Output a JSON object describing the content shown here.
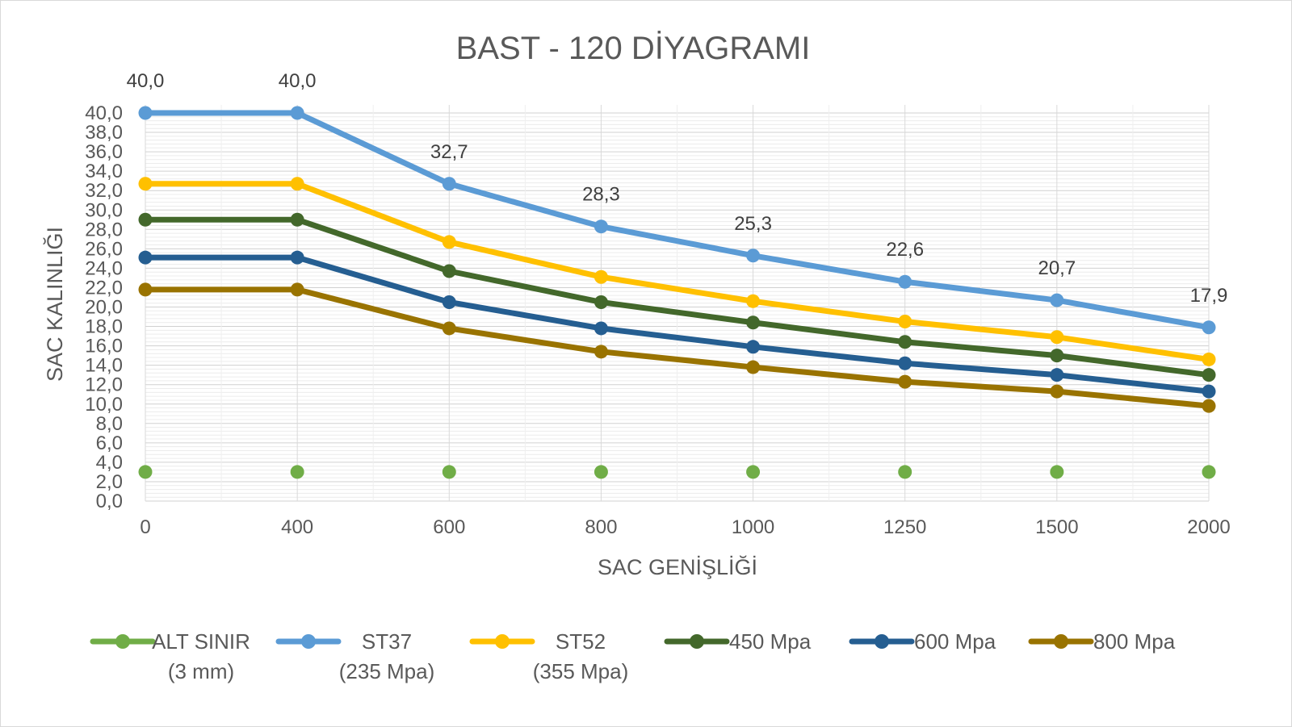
{
  "chart_data": {
    "type": "line",
    "title": "BAST - 120 DİYAGRAMI",
    "xlabel": "SAC GENİŞLİĞİ",
    "ylabel": "SAC KALINLIĞI",
    "categories": [
      "0",
      "400",
      "600",
      "800",
      "1000",
      "1250",
      "1500",
      "2000"
    ],
    "ylim": [
      0,
      40
    ],
    "y_ticks": [
      "0,0",
      "2,0",
      "4,0",
      "6,0",
      "8,0",
      "10,0",
      "12,0",
      "14,0",
      "16,0",
      "18,0",
      "20,0",
      "22,0",
      "24,0",
      "26,0",
      "28,0",
      "30,0",
      "32,0",
      "34,0",
      "36,0",
      "38,0",
      "40,0"
    ],
    "grid": true,
    "legend_position": "bottom",
    "series": [
      {
        "name_line1": "ALT SINIR",
        "name_line2": "(3 mm)",
        "color": "#70ad47",
        "values": [
          3.0,
          3.0,
          3.0,
          3.0,
          3.0,
          3.0,
          3.0,
          3.0
        ],
        "shadow": true
      },
      {
        "name_line1": "ST37",
        "name_line2": "(235 Mpa)",
        "color": "#5b9bd5",
        "values": [
          40.0,
          40.0,
          32.7,
          28.3,
          25.3,
          22.6,
          20.7,
          17.9
        ],
        "data_labels": [
          "40,0",
          "40,0",
          "32,7",
          "28,3",
          "25,3",
          "22,6",
          "20,7",
          "17,9"
        ]
      },
      {
        "name_line1": "ST52",
        "name_line2": "(355 Mpa)",
        "color": "#ffc000",
        "values": [
          32.7,
          32.7,
          26.7,
          23.1,
          20.6,
          18.5,
          16.9,
          14.6
        ]
      },
      {
        "name_line1": "450  Mpa",
        "name_line2": "",
        "color": "#43682b",
        "values": [
          29.0,
          29.0,
          23.7,
          20.5,
          18.4,
          16.4,
          15.0,
          13.0
        ]
      },
      {
        "name_line1": "600 Mpa",
        "name_line2": "",
        "color": "#255e91",
        "values": [
          25.1,
          25.1,
          20.5,
          17.8,
          15.9,
          14.2,
          13.0,
          11.3
        ]
      },
      {
        "name_line1": "800 Mpa",
        "name_line2": "",
        "color": "#997300",
        "values": [
          21.8,
          21.8,
          17.8,
          15.4,
          13.8,
          12.3,
          11.3,
          9.8
        ]
      }
    ]
  }
}
